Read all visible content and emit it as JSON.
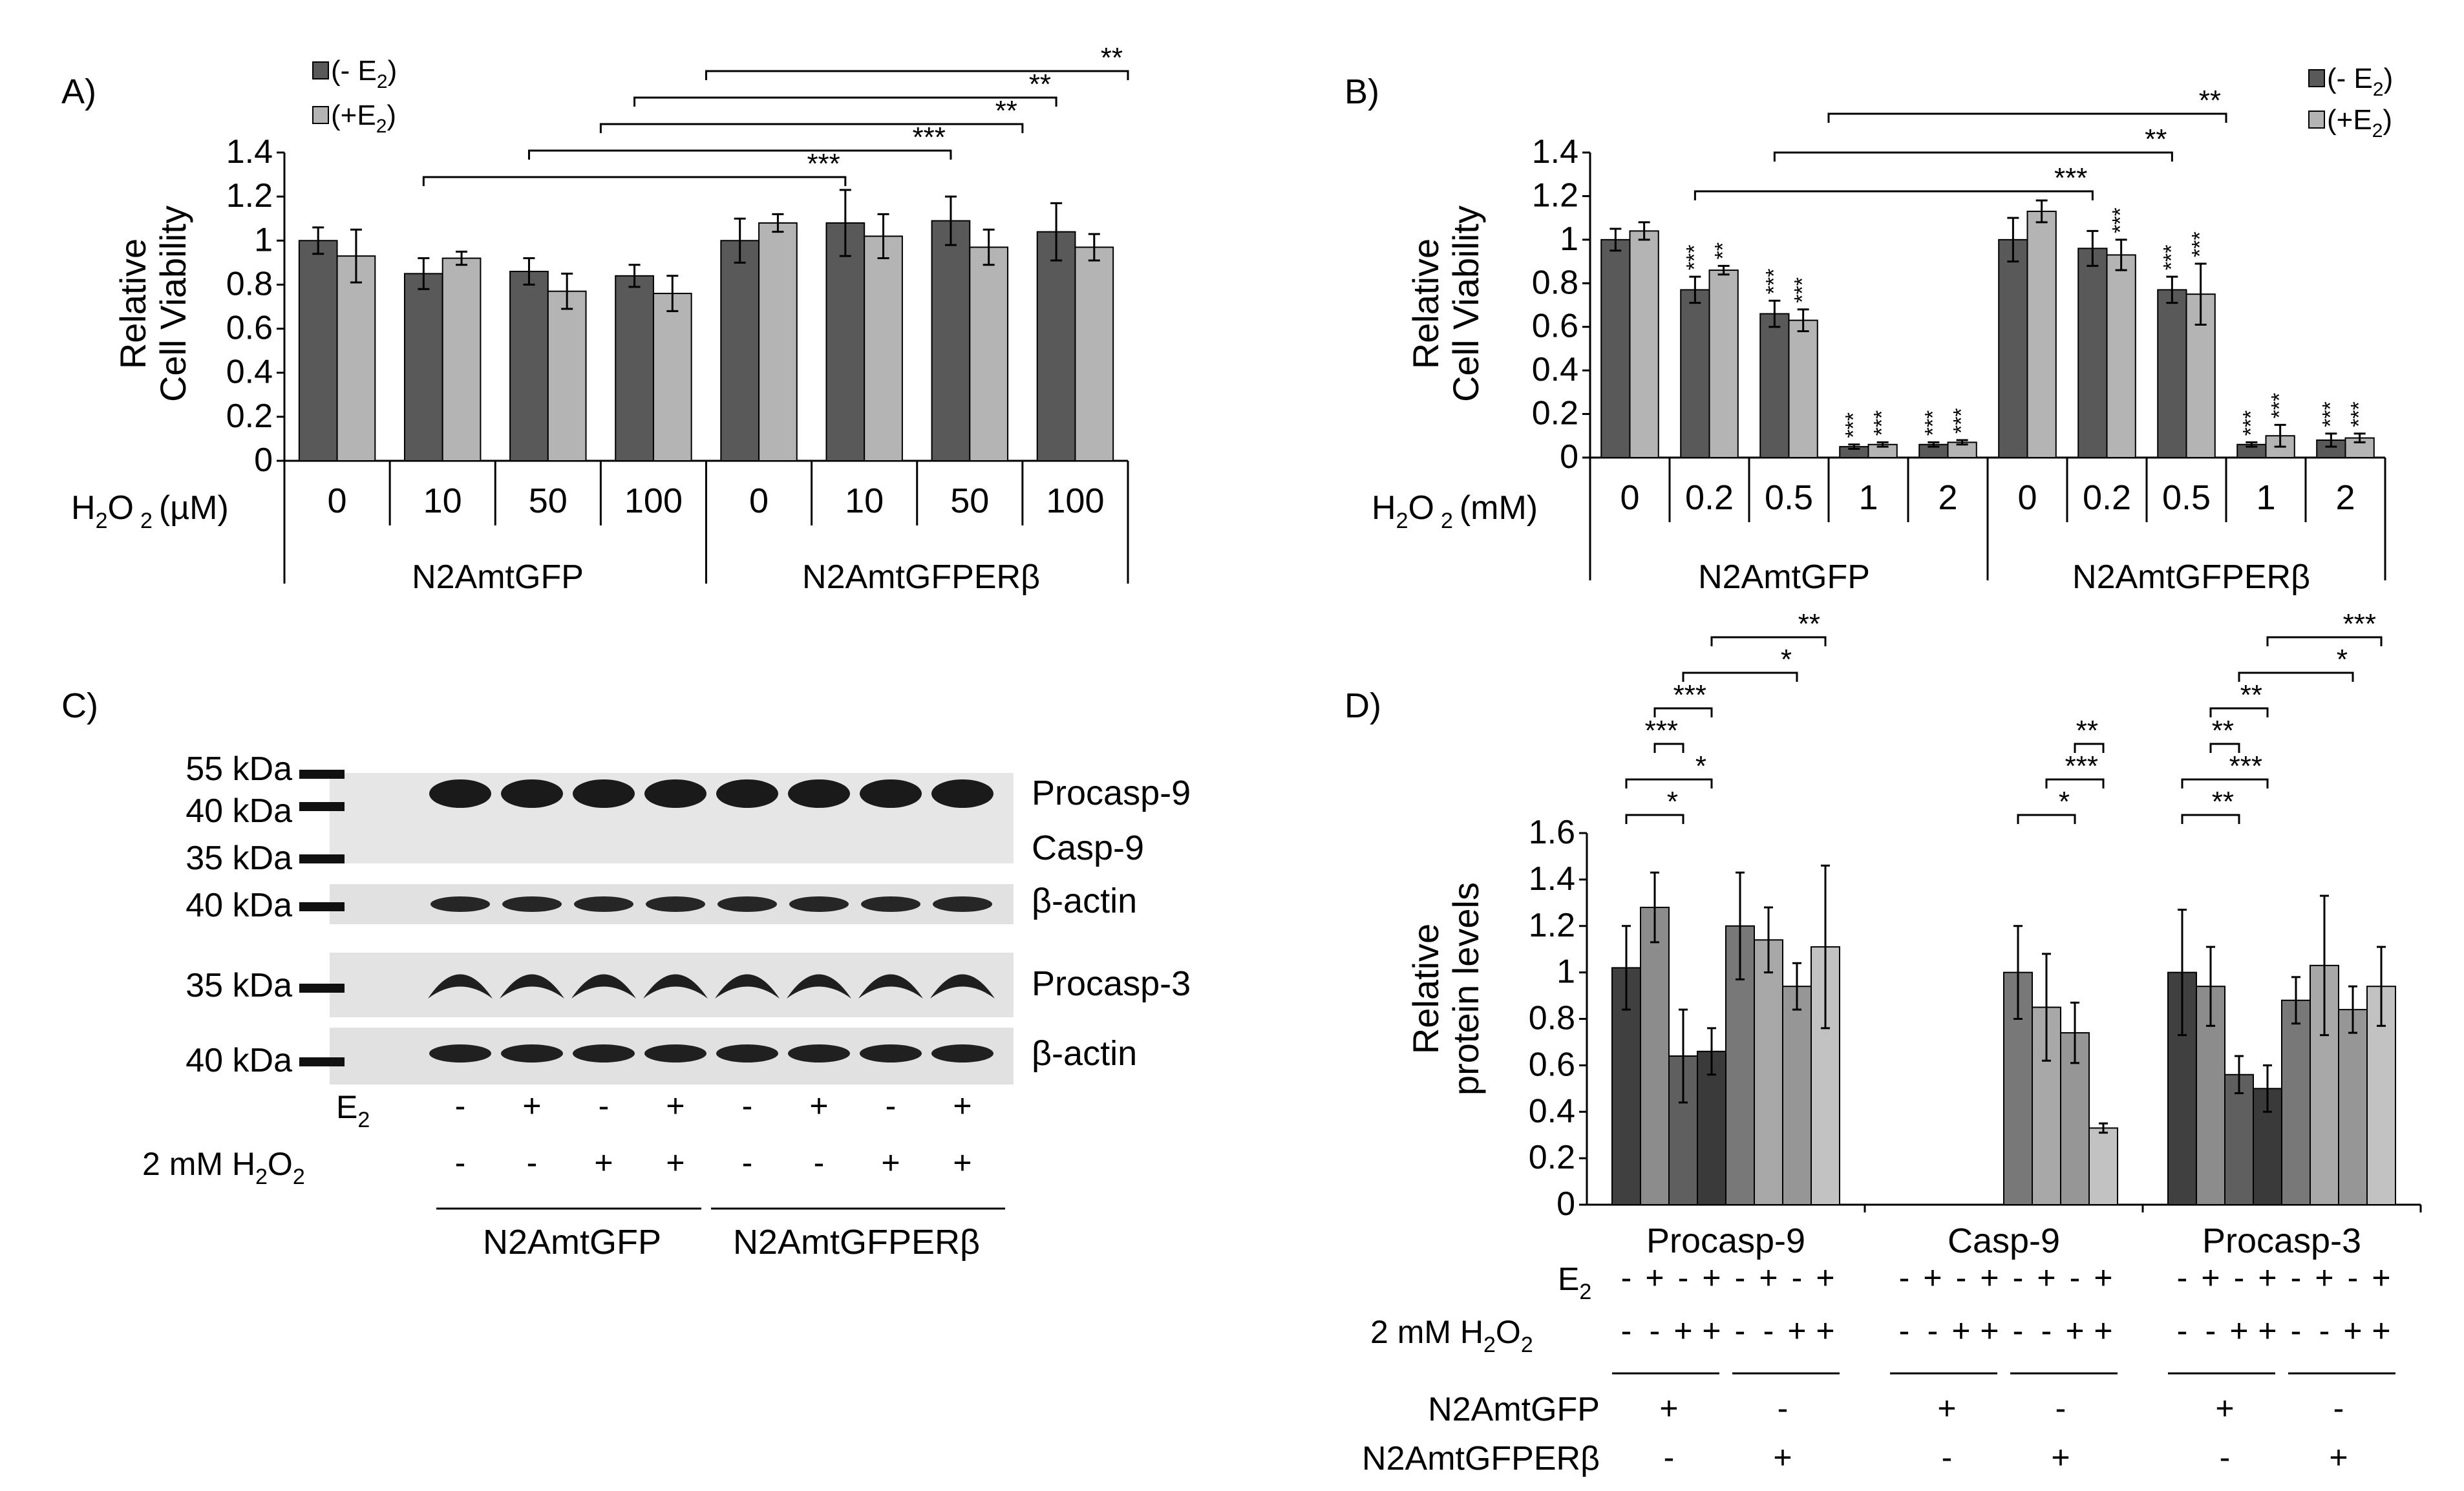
{
  "colors": {
    "minus_e2": "#595959",
    "plus_e2": "#b4b4b4",
    "d_series": [
      "#404040",
      "#8c8c8c",
      "#5f5f5f",
      "#3a3a3a",
      "#787878",
      "#a8a8a8",
      "#969696",
      "#c2c2c2"
    ]
  },
  "legend": {
    "minus": "(- E",
    "plus": "(+E",
    "sub": "2",
    "close": ")"
  },
  "panelA": {
    "letter": "A)",
    "ylabel_line1": "Relative",
    "ylabel_line2": "Cell Viability",
    "conc_label": "H",
    "conc_sub": "2",
    "conc_o": "O",
    "conc_unit": "(µM)",
    "lines": [
      "N2AmtGFP",
      "N2AmtGFPERβ"
    ]
  },
  "panelB": {
    "letter": "B)",
    "ylabel_line1": "Relative",
    "ylabel_line2": "Cell Viability",
    "conc_label": "H",
    "conc_sub": "2",
    "conc_o": "O",
    "conc_unit": "(mM)",
    "lines": [
      "N2AmtGFP",
      "N2AmtGFPERβ"
    ]
  },
  "panelC": {
    "letter": "C)",
    "markers": [
      "55 kDa",
      "40 kDa",
      "35 kDa",
      "40 kDa",
      "35 kDa",
      "40 kDa"
    ],
    "band_labels": [
      "Procasp-9",
      "Casp-9",
      "β-actin",
      "Procasp-3",
      "β-actin"
    ],
    "row_e2": {
      "label": "E",
      "sub": "2",
      "values": [
        "-",
        "+",
        "-",
        "+",
        "-",
        "+",
        "-",
        "+"
      ]
    },
    "row_h2o2": {
      "label": "2 mM H",
      "sub": "2",
      "o": "O",
      "sub2": "2",
      "values": [
        "-",
        "-",
        "+",
        "+",
        "-",
        "-",
        "+",
        "+"
      ]
    },
    "lines": [
      "N2AmtGFP",
      "N2AmtGFPERβ"
    ]
  },
  "panelD": {
    "letter": "D)",
    "ylabel_line1": "Relative",
    "ylabel_line2": "protein levels",
    "row_e2": {
      "label": "E",
      "sub": "2",
      "values": [
        "-",
        "+",
        "-",
        "+",
        "-",
        "+",
        "-",
        "+"
      ]
    },
    "row_h2o2": {
      "label": "2 mM H",
      "sub": "2",
      "o": "O",
      "sub2": "2",
      "values": [
        "-",
        "-",
        "+",
        "+",
        "-",
        "-",
        "+",
        "+"
      ]
    },
    "line_rows": [
      {
        "label": "N2AmtGFP",
        "values": [
          "+",
          "-"
        ]
      },
      {
        "label": "N2AmtGFPERβ",
        "values": [
          "-",
          "+"
        ]
      }
    ]
  },
  "chart_data": [
    {
      "panel": "A",
      "type": "bar",
      "ylabel": "Relative Cell Viability",
      "ylim": [
        0,
        1.4
      ],
      "yticks": [
        "0",
        "0.2",
        "0.4",
        "0.6",
        "0.8",
        "1",
        "1.2",
        "1.4"
      ],
      "xlabel": "H2O2 (µM)",
      "categories": [
        "0",
        "10",
        "50",
        "100",
        "0",
        "10",
        "50",
        "100"
      ],
      "groups": [
        {
          "label": "N2AmtGFP",
          "span": [
            0,
            3
          ]
        },
        {
          "label": "N2AmtGFPERβ",
          "span": [
            4,
            7
          ]
        }
      ],
      "series": [
        {
          "name": "(- E2)",
          "values": [
            1.0,
            0.85,
            0.86,
            0.84,
            1.0,
            1.08,
            1.09,
            1.04
          ],
          "errors": [
            0.06,
            0.07,
            0.06,
            0.05,
            0.1,
            0.15,
            0.11,
            0.13
          ]
        },
        {
          "name": "(+E2)",
          "values": [
            0.93,
            0.92,
            0.77,
            0.76,
            1.08,
            1.02,
            0.97,
            0.97
          ],
          "errors": [
            0.12,
            0.03,
            0.08,
            0.08,
            0.04,
            0.1,
            0.08,
            0.06
          ]
        }
      ],
      "significance": [
        {
          "from": 1,
          "to": 5,
          "label": "***"
        },
        {
          "from": 2,
          "to": 6,
          "label": "***"
        },
        {
          "from": 2.5,
          "to": 6.5,
          "label": "**"
        },
        {
          "from": 3,
          "to": 7,
          "label": "**"
        },
        {
          "from": 3.5,
          "to": 7.5,
          "label": "**"
        }
      ]
    },
    {
      "panel": "B",
      "type": "bar",
      "ylabel": "Relative Cell Viability",
      "ylim": [
        0,
        1.4
      ],
      "yticks": [
        "0",
        "0.2",
        "0.4",
        "0.6",
        "0.8",
        "1",
        "1.2",
        "1.4"
      ],
      "xlabel": "H2O2 (mM)",
      "categories": [
        "0",
        "0.2",
        "0.5",
        "1",
        "2",
        "0",
        "0.2",
        "0.5",
        "1",
        "2"
      ],
      "groups": [
        {
          "label": "N2AmtGFP",
          "span": [
            0,
            4
          ]
        },
        {
          "label": "N2AmtGFPERβ",
          "span": [
            5,
            9
          ]
        }
      ],
      "series": [
        {
          "name": "(- E2)",
          "values": [
            1.0,
            0.77,
            0.66,
            0.05,
            0.06,
            1.0,
            0.96,
            0.77,
            0.06,
            0.08
          ],
          "errors": [
            0.05,
            0.06,
            0.06,
            0.01,
            0.01,
            0.1,
            0.08,
            0.06,
            0.01,
            0.03
          ],
          "stars": [
            "",
            "***",
            "***",
            "***",
            "***",
            "",
            "",
            "***",
            "***",
            "***"
          ]
        },
        {
          "name": "(+E2)",
          "values": [
            1.04,
            0.86,
            0.63,
            0.06,
            0.07,
            1.13,
            0.93,
            0.75,
            0.1,
            0.09
          ],
          "errors": [
            0.04,
            0.02,
            0.05,
            0.01,
            0.01,
            0.05,
            0.07,
            0.14,
            0.05,
            0.02
          ],
          "stars": [
            "",
            "**",
            "***",
            "***",
            "***",
            "",
            "***",
            "***",
            "***",
            "***"
          ]
        }
      ],
      "significance": [
        {
          "from": 1,
          "to": 6,
          "label": "***"
        },
        {
          "from": 2,
          "to": 7,
          "label": "**"
        },
        {
          "from": 2.5,
          "to": 7.5,
          "label": "**"
        }
      ]
    },
    {
      "panel": "D",
      "type": "bar",
      "ylabel": "Relative protein levels",
      "ylim": [
        0,
        1.6
      ],
      "yticks": [
        "0",
        "0.2",
        "0.4",
        "0.6",
        "0.8",
        "1",
        "1.2",
        "1.4",
        "1.6"
      ],
      "categories": [
        "Procasp-9",
        "Casp-9",
        "Procasp-3"
      ],
      "groups": [
        {
          "label": "Procasp-9",
          "values": [
            1.02,
            1.28,
            0.64,
            0.66,
            1.2,
            1.14,
            0.94,
            1.11
          ],
          "errors": [
            0.18,
            0.15,
            0.2,
            0.1,
            0.23,
            0.14,
            0.1,
            0.35
          ]
        },
        {
          "label": "Casp-9",
          "values": [
            null,
            null,
            null,
            null,
            1.0,
            0.85,
            0.74,
            0.33
          ],
          "errors": [
            null,
            null,
            null,
            null,
            0.2,
            0.23,
            0.13,
            0.02
          ]
        },
        {
          "label": "Procasp-3",
          "values": [
            1.0,
            0.94,
            0.56,
            0.5,
            0.88,
            1.03,
            0.84,
            0.94
          ],
          "errors": [
            0.27,
            0.17,
            0.08,
            0.1,
            0.1,
            0.3,
            0.1,
            0.17
          ]
        }
      ],
      "significance": [
        {
          "group": 0,
          "from": 0,
          "to": 2,
          "label": "*"
        },
        {
          "group": 0,
          "from": 0,
          "to": 3,
          "label": "*"
        },
        {
          "group": 0,
          "from": 1,
          "to": 2,
          "label": "***"
        },
        {
          "group": 0,
          "from": 1,
          "to": 3,
          "label": "***"
        },
        {
          "group": 0,
          "from": 2,
          "to": 6,
          "label": "*"
        },
        {
          "group": 0,
          "from": 3,
          "to": 7,
          "label": "**"
        },
        {
          "group": 1,
          "from": 4,
          "to": 6,
          "label": "*"
        },
        {
          "group": 1,
          "from": 5,
          "to": 7,
          "label": "***"
        },
        {
          "group": 1,
          "from": 6,
          "to": 7,
          "label": "**"
        },
        {
          "group": 2,
          "from": 0,
          "to": 2,
          "label": "**"
        },
        {
          "group": 2,
          "from": 0,
          "to": 3,
          "label": "***"
        },
        {
          "group": 2,
          "from": 1,
          "to": 2,
          "label": "**"
        },
        {
          "group": 2,
          "from": 1,
          "to": 3,
          "label": "**"
        },
        {
          "group": 2,
          "from": 2,
          "to": 6,
          "label": "*"
        },
        {
          "group": 2,
          "from": 3,
          "to": 7,
          "label": "***"
        }
      ]
    }
  ]
}
